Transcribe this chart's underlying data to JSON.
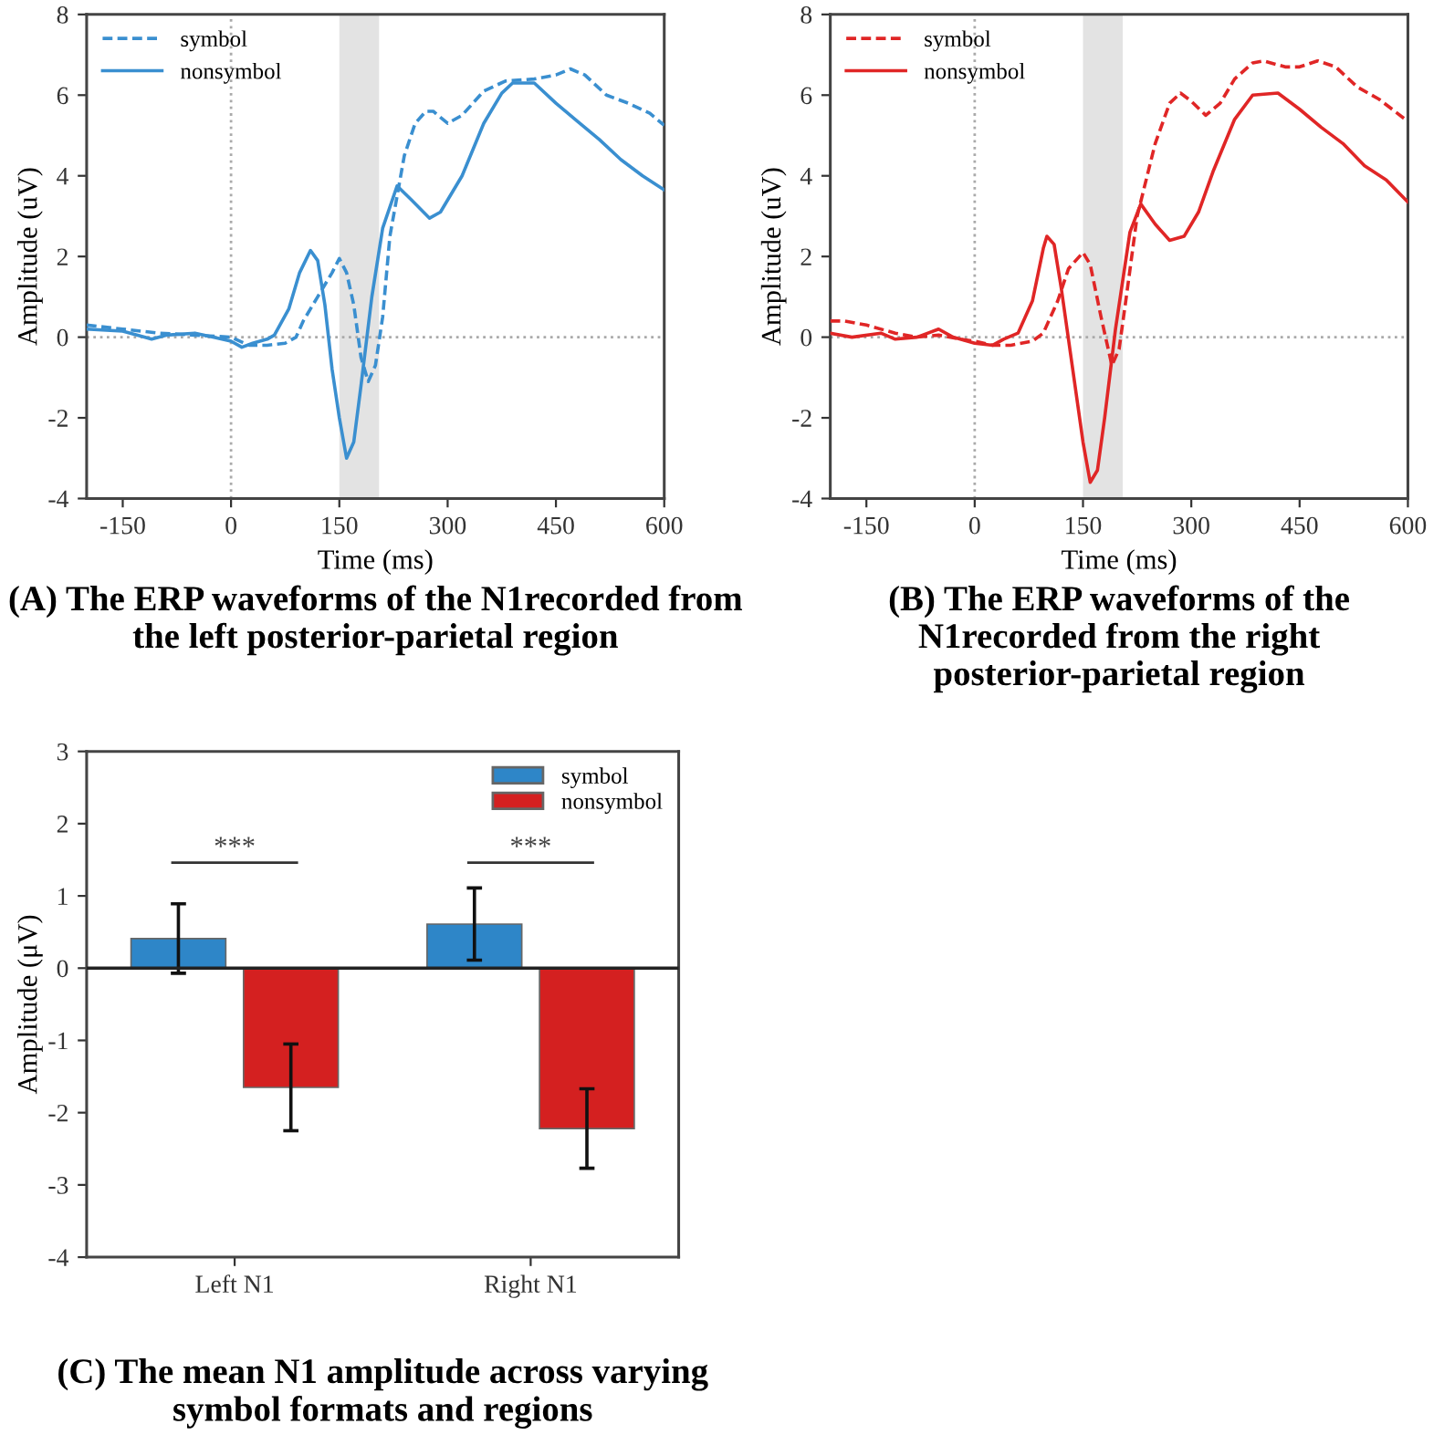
{
  "chart_data": [
    {
      "type": "line",
      "title": "(A) The ERP waveforms of the N1recorded from the left posterior-parietal region",
      "xlabel": "Time (ms)",
      "ylabel": "Amplitude (uV)",
      "xlim": [
        -200,
        600
      ],
      "ylim": [
        -4,
        8
      ],
      "xticks": [
        -150,
        0,
        150,
        300,
        450,
        600
      ],
      "yticks": [
        -4,
        -2,
        0,
        2,
        4,
        6,
        8
      ],
      "legend": "top left",
      "ref_lines": [
        {
          "axis": "x",
          "value": 0,
          "color": "#aaaaaa",
          "line_style": "dotted"
        },
        {
          "axis": "y",
          "value": 0,
          "color": "#aaaaaa",
          "line_style": "dotted"
        }
      ],
      "bands": [
        {
          "axis": "x",
          "from": 150,
          "to": 205,
          "color": "#e3e3e3"
        }
      ],
      "series": [
        {
          "name": "symbol",
          "color": "#3a8fd0",
          "line_style": "dashed",
          "x": [
            -200,
            -150,
            -100,
            -50,
            0,
            25,
            50,
            75,
            90,
            100,
            120,
            140,
            150,
            160,
            170,
            180,
            190,
            200,
            210,
            220,
            240,
            255,
            270,
            280,
            300,
            320,
            350,
            380,
            420,
            450,
            470,
            490,
            520,
            550,
            580,
            600
          ],
          "values": [
            0.3,
            0.2,
            0.1,
            0.05,
            0.0,
            -0.2,
            -0.2,
            -0.15,
            0.0,
            0.4,
            1.0,
            1.6,
            1.95,
            1.6,
            0.8,
            -0.5,
            -1.1,
            -0.7,
            0.5,
            2.5,
            4.5,
            5.3,
            5.6,
            5.6,
            5.3,
            5.5,
            6.1,
            6.35,
            6.4,
            6.5,
            6.65,
            6.5,
            6.0,
            5.8,
            5.55,
            5.25
          ]
        },
        {
          "name": "nonsymbol",
          "color": "#3a8fd0",
          "line_style": "solid",
          "x": [
            -200,
            -150,
            -120,
            -110,
            -90,
            -50,
            -25,
            0,
            15,
            30,
            50,
            60,
            80,
            95,
            110,
            120,
            130,
            140,
            150,
            160,
            170,
            180,
            195,
            210,
            230,
            250,
            275,
            290,
            320,
            350,
            375,
            390,
            420,
            450,
            480,
            510,
            540,
            570,
            600
          ],
          "values": [
            0.2,
            0.15,
            0.0,
            -0.05,
            0.05,
            0.1,
            0.0,
            -0.1,
            -0.25,
            -0.15,
            -0.05,
            0.05,
            0.7,
            1.6,
            2.15,
            1.9,
            0.8,
            -0.8,
            -2.0,
            -3.0,
            -2.6,
            -1.2,
            1.0,
            2.7,
            3.75,
            3.4,
            2.95,
            3.1,
            4.0,
            5.3,
            6.05,
            6.3,
            6.3,
            5.8,
            5.35,
            4.9,
            4.4,
            4.0,
            3.65
          ]
        }
      ]
    },
    {
      "type": "line",
      "title": "(B) The ERP waveforms of the N1recorded from the right posterior-parietal region",
      "xlabel": "Time (ms)",
      "ylabel": "Amplitude (uV)",
      "xlim": [
        -200,
        600
      ],
      "ylim": [
        -4,
        8
      ],
      "xticks": [
        -150,
        0,
        150,
        300,
        450,
        600
      ],
      "yticks": [
        -4,
        -2,
        0,
        2,
        4,
        6,
        8
      ],
      "legend": "top left",
      "ref_lines": [
        {
          "axis": "x",
          "value": 0,
          "color": "#aaaaaa",
          "line_style": "dotted"
        },
        {
          "axis": "y",
          "value": 0,
          "color": "#aaaaaa",
          "line_style": "dotted"
        }
      ],
      "bands": [
        {
          "axis": "x",
          "from": 150,
          "to": 205,
          "color": "#e3e3e3"
        }
      ],
      "series": [
        {
          "name": "symbol",
          "color": "#e02626",
          "line_style": "dashed",
          "x": [
            -200,
            -180,
            -150,
            -110,
            -80,
            -50,
            -20,
            0,
            25,
            50,
            80,
            95,
            115,
            130,
            150,
            160,
            175,
            190,
            200,
            210,
            225,
            250,
            270,
            285,
            300,
            320,
            340,
            360,
            385,
            400,
            430,
            450,
            475,
            500,
            530,
            560,
            600
          ],
          "values": [
            0.4,
            0.4,
            0.3,
            0.1,
            0.0,
            0.05,
            -0.05,
            -0.1,
            -0.2,
            -0.2,
            -0.1,
            0.1,
            0.9,
            1.7,
            2.1,
            1.8,
            0.5,
            -0.7,
            -0.3,
            1.0,
            3.0,
            4.8,
            5.8,
            6.05,
            5.85,
            5.5,
            5.8,
            6.4,
            6.8,
            6.85,
            6.7,
            6.7,
            6.85,
            6.7,
            6.2,
            5.9,
            5.35
          ]
        },
        {
          "name": "nonsymbol",
          "color": "#e02626",
          "line_style": "solid",
          "x": [
            -200,
            -170,
            -130,
            -110,
            -80,
            -50,
            -30,
            0,
            25,
            40,
            60,
            80,
            95,
            100,
            110,
            120,
            135,
            150,
            160,
            170,
            180,
            195,
            215,
            230,
            250,
            270,
            290,
            310,
            330,
            360,
            385,
            420,
            450,
            480,
            510,
            540,
            570,
            600
          ],
          "values": [
            0.1,
            0.0,
            0.1,
            -0.05,
            0.0,
            0.2,
            0.0,
            -0.15,
            -0.2,
            -0.05,
            0.1,
            0.9,
            2.2,
            2.5,
            2.3,
            1.2,
            -0.7,
            -2.6,
            -3.6,
            -3.3,
            -2.0,
            0.2,
            2.6,
            3.3,
            2.8,
            2.4,
            2.5,
            3.1,
            4.1,
            5.4,
            6.0,
            6.05,
            5.65,
            5.2,
            4.8,
            4.25,
            3.9,
            3.35
          ]
        }
      ]
    },
    {
      "type": "bar",
      "title": "(C) The mean N1 amplitude across varying symbol formats and regions",
      "ylabel": "Amplitude (μV)",
      "categories": [
        "Left N1",
        "Right N1"
      ],
      "ylim": [
        -4,
        3
      ],
      "yticks": [
        -4,
        -3,
        -2,
        -1,
        0,
        1,
        2,
        3
      ],
      "legend": "top right",
      "ref_lines": [
        {
          "axis": "y",
          "value": 0,
          "color": "#222222",
          "line_style": "solid"
        }
      ],
      "annotations": [
        "***",
        "***"
      ],
      "series": [
        {
          "name": "symbol",
          "color": "#2e86c8",
          "values": [
            0.41,
            0.61
          ],
          "errors": [
            0.48,
            0.5
          ]
        },
        {
          "name": "nonsymbol",
          "color": "#d42020",
          "values": [
            -1.65,
            -2.22
          ],
          "errors": [
            0.6,
            0.55
          ]
        }
      ]
    }
  ]
}
